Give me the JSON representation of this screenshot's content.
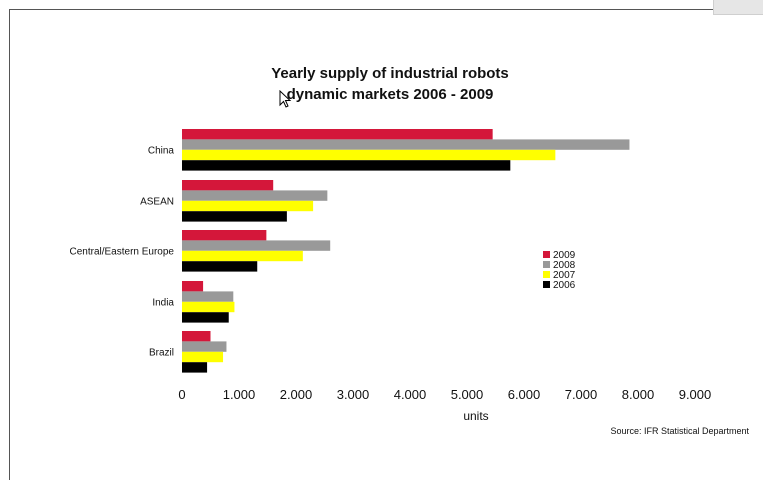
{
  "chart_data": {
    "type": "bar",
    "orientation": "horizontal",
    "title": "Yearly supply of industrial robots",
    "subtitle": "dynamic markets 2006 - 2009",
    "xlabel": "units",
    "ylabel": "",
    "source": "Source: IFR Statistical Department",
    "categories": [
      "China",
      "ASEAN",
      "Central/Eastern Europe",
      "India",
      "Brazil"
    ],
    "xlim": [
      0,
      9000
    ],
    "x_ticks": [
      "0",
      "1.000",
      "2.000",
      "3.000",
      "4.000",
      "5.000",
      "6.000",
      "7.000",
      "8.000",
      "9.000"
    ],
    "grid": false,
    "legend_position": "right",
    "series": [
      {
        "name": "2009",
        "color": "#d4173a",
        "values": [
          5450,
          1600,
          1480,
          370,
          500
        ]
      },
      {
        "name": "2008",
        "color": "#999999",
        "values": [
          7850,
          2550,
          2600,
          900,
          780
        ]
      },
      {
        "name": "2007",
        "color": "#ffff00",
        "values": [
          6550,
          2300,
          2120,
          920,
          720
        ]
      },
      {
        "name": "2006",
        "color": "#000000",
        "values": [
          5760,
          1840,
          1320,
          820,
          440
        ]
      }
    ]
  }
}
